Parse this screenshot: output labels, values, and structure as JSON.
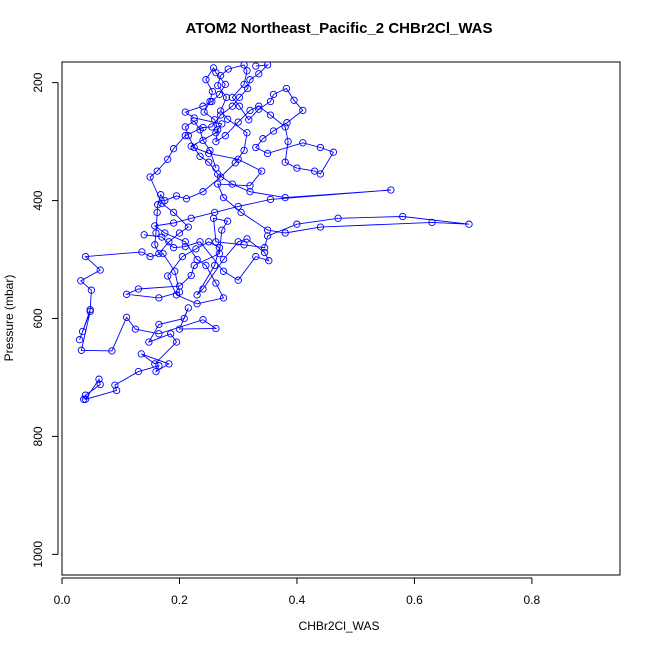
{
  "chart_data": {
    "type": "line",
    "title": "ATOM2 Northeast_Pacific_2 CHBr2Cl_WAS",
    "xlabel": "CHBr2Cl_WAS",
    "ylabel": "Pressure (mbar)",
    "xlim": [
      0.0,
      0.95
    ],
    "ylim": [
      1035,
      165
    ],
    "y_axis_reversed": true,
    "grid": false,
    "legend": "none",
    "x_ticks": [
      "0.0",
      "0.2",
      "0.4",
      "0.6",
      "0.8"
    ],
    "y_ticks": [
      "200",
      "400",
      "600",
      "800",
      "1000"
    ],
    "series": [
      {
        "color": "#0000ff",
        "marker": "open-circle",
        "points": [
          [
            0.037,
            737
          ],
          [
            0.04,
            730
          ],
          [
            0.065,
            712
          ],
          [
            0.063,
            703
          ],
          [
            0.04,
            737
          ],
          [
            0.093,
            722
          ],
          [
            0.09,
            713
          ],
          [
            0.13,
            690
          ],
          [
            0.165,
            680
          ],
          [
            0.16,
            690
          ],
          [
            0.182,
            677
          ],
          [
            0.135,
            660
          ],
          [
            0.158,
            677
          ],
          [
            0.195,
            640
          ],
          [
            0.185,
            626
          ],
          [
            0.148,
            640
          ],
          [
            0.165,
            610
          ],
          [
            0.208,
            600
          ],
          [
            0.215,
            582
          ],
          [
            0.2,
            618
          ],
          [
            0.262,
            617
          ],
          [
            0.24,
            602
          ],
          [
            0.165,
            626
          ],
          [
            0.125,
            618
          ],
          [
            0.11,
            598
          ],
          [
            0.085,
            655
          ],
          [
            0.033,
            654
          ],
          [
            0.048,
            588
          ],
          [
            0.03,
            636
          ],
          [
            0.035,
            622
          ],
          [
            0.048,
            585
          ],
          [
            0.05,
            552
          ],
          [
            0.032,
            536
          ],
          [
            0.065,
            518
          ],
          [
            0.04,
            495
          ],
          [
            0.136,
            487
          ],
          [
            0.15,
            495
          ],
          [
            0.172,
            490
          ],
          [
            0.192,
            520
          ],
          [
            0.2,
            555
          ],
          [
            0.165,
            565
          ],
          [
            0.11,
            559
          ],
          [
            0.13,
            550
          ],
          [
            0.2,
            545
          ],
          [
            0.22,
            527
          ],
          [
            0.225,
            510
          ],
          [
            0.268,
            490
          ],
          [
            0.272,
            450
          ],
          [
            0.282,
            435
          ],
          [
            0.258,
            430
          ],
          [
            0.262,
            470
          ],
          [
            0.31,
            475
          ],
          [
            0.345,
            480
          ],
          [
            0.35,
            460
          ],
          [
            0.4,
            440
          ],
          [
            0.47,
            430
          ],
          [
            0.58,
            427
          ],
          [
            0.693,
            440
          ],
          [
            0.63,
            437
          ],
          [
            0.44,
            445
          ],
          [
            0.38,
            455
          ],
          [
            0.35,
            450
          ],
          [
            0.305,
            420
          ],
          [
            0.275,
            395
          ],
          [
            0.265,
            372
          ],
          [
            0.32,
            375
          ],
          [
            0.34,
            350
          ],
          [
            0.3,
            330
          ],
          [
            0.25,
            320
          ],
          [
            0.22,
            308
          ],
          [
            0.262,
            285
          ],
          [
            0.272,
            270
          ],
          [
            0.225,
            260
          ],
          [
            0.21,
            250
          ],
          [
            0.24,
            240
          ],
          [
            0.255,
            232
          ],
          [
            0.268,
            220
          ],
          [
            0.278,
            203
          ],
          [
            0.262,
            183
          ],
          [
            0.258,
            175
          ],
          [
            0.245,
            195
          ],
          [
            0.256,
            215
          ],
          [
            0.252,
            232
          ],
          [
            0.242,
            250
          ],
          [
            0.26,
            263
          ],
          [
            0.265,
            280
          ],
          [
            0.262,
            300
          ],
          [
            0.278,
            290
          ],
          [
            0.3,
            267
          ],
          [
            0.32,
            247
          ],
          [
            0.335,
            240
          ],
          [
            0.355,
            255
          ],
          [
            0.38,
            275
          ],
          [
            0.385,
            300
          ],
          [
            0.38,
            335
          ],
          [
            0.4,
            345
          ],
          [
            0.43,
            350
          ],
          [
            0.44,
            355
          ],
          [
            0.462,
            318
          ],
          [
            0.44,
            310
          ],
          [
            0.41,
            302
          ],
          [
            0.35,
            320
          ],
          [
            0.33,
            310
          ],
          [
            0.342,
            295
          ],
          [
            0.36,
            282
          ],
          [
            0.383,
            268
          ],
          [
            0.41,
            247
          ],
          [
            0.395,
            230
          ],
          [
            0.382,
            210
          ],
          [
            0.36,
            220
          ],
          [
            0.355,
            232
          ],
          [
            0.335,
            245
          ],
          [
            0.318,
            263
          ],
          [
            0.302,
            240
          ],
          [
            0.29,
            225
          ],
          [
            0.31,
            203
          ],
          [
            0.315,
            180
          ],
          [
            0.31,
            170
          ],
          [
            0.283,
            177
          ],
          [
            0.27,
            188
          ],
          [
            0.265,
            205
          ],
          [
            0.28,
            225
          ],
          [
            0.27,
            248
          ],
          [
            0.282,
            262
          ],
          [
            0.315,
            285
          ],
          [
            0.31,
            315
          ],
          [
            0.295,
            336
          ],
          [
            0.27,
            360
          ],
          [
            0.24,
            385
          ],
          [
            0.212,
            397
          ],
          [
            0.195,
            392
          ],
          [
            0.175,
            400
          ],
          [
            0.168,
            390
          ],
          [
            0.163,
            407
          ],
          [
            0.162,
            420
          ],
          [
            0.16,
            455
          ],
          [
            0.158,
            475
          ],
          [
            0.165,
            490
          ],
          [
            0.182,
            470
          ],
          [
            0.2,
            455
          ],
          [
            0.215,
            445
          ],
          [
            0.19,
            420
          ],
          [
            0.17,
            405
          ],
          [
            0.15,
            360
          ],
          [
            0.162,
            350
          ],
          [
            0.18,
            330
          ],
          [
            0.19,
            312
          ],
          [
            0.21,
            290
          ],
          [
            0.24,
            276
          ],
          [
            0.255,
            275
          ],
          [
            0.27,
            255
          ],
          [
            0.29,
            240
          ],
          [
            0.302,
            225
          ],
          [
            0.316,
            210
          ],
          [
            0.32,
            195
          ],
          [
            0.335,
            185
          ],
          [
            0.35,
            170
          ],
          [
            0.33,
            172
          ]
        ]
      },
      {
        "color": "#0000ff",
        "marker": "open-circle",
        "points": [
          [
            0.14,
            458
          ],
          [
            0.17,
            462
          ],
          [
            0.19,
            480
          ],
          [
            0.21,
            478
          ],
          [
            0.235,
            470
          ],
          [
            0.275,
            520
          ],
          [
            0.3,
            535
          ],
          [
            0.33,
            495
          ],
          [
            0.352,
            502
          ],
          [
            0.345,
            488
          ],
          [
            0.315,
            465
          ],
          [
            0.3,
            470
          ],
          [
            0.275,
            500
          ],
          [
            0.24,
            550
          ],
          [
            0.23,
            560
          ],
          [
            0.26,
            510
          ],
          [
            0.268,
            480
          ],
          [
            0.25,
            470
          ],
          [
            0.228,
            482
          ],
          [
            0.205,
            495
          ],
          [
            0.18,
            528
          ],
          [
            0.195,
            560
          ],
          [
            0.23,
            575
          ],
          [
            0.275,
            565
          ],
          [
            0.262,
            540
          ],
          [
            0.245,
            510
          ],
          [
            0.23,
            500
          ],
          [
            0.21,
            470
          ],
          [
            0.175,
            455
          ],
          [
            0.158,
            443
          ],
          [
            0.19,
            438
          ],
          [
            0.22,
            430
          ],
          [
            0.26,
            420
          ],
          [
            0.3,
            410
          ],
          [
            0.355,
            398
          ],
          [
            0.56,
            382
          ],
          [
            0.38,
            395
          ],
          [
            0.32,
            385
          ],
          [
            0.29,
            372
          ],
          [
            0.265,
            355
          ],
          [
            0.25,
            335
          ],
          [
            0.235,
            325
          ],
          [
            0.225,
            310
          ],
          [
            0.215,
            290
          ],
          [
            0.21,
            275
          ],
          [
            0.225,
            265
          ],
          [
            0.235,
            280
          ],
          [
            0.24,
            298
          ],
          [
            0.252,
            315
          ],
          [
            0.262,
            345
          ]
        ]
      }
    ]
  }
}
